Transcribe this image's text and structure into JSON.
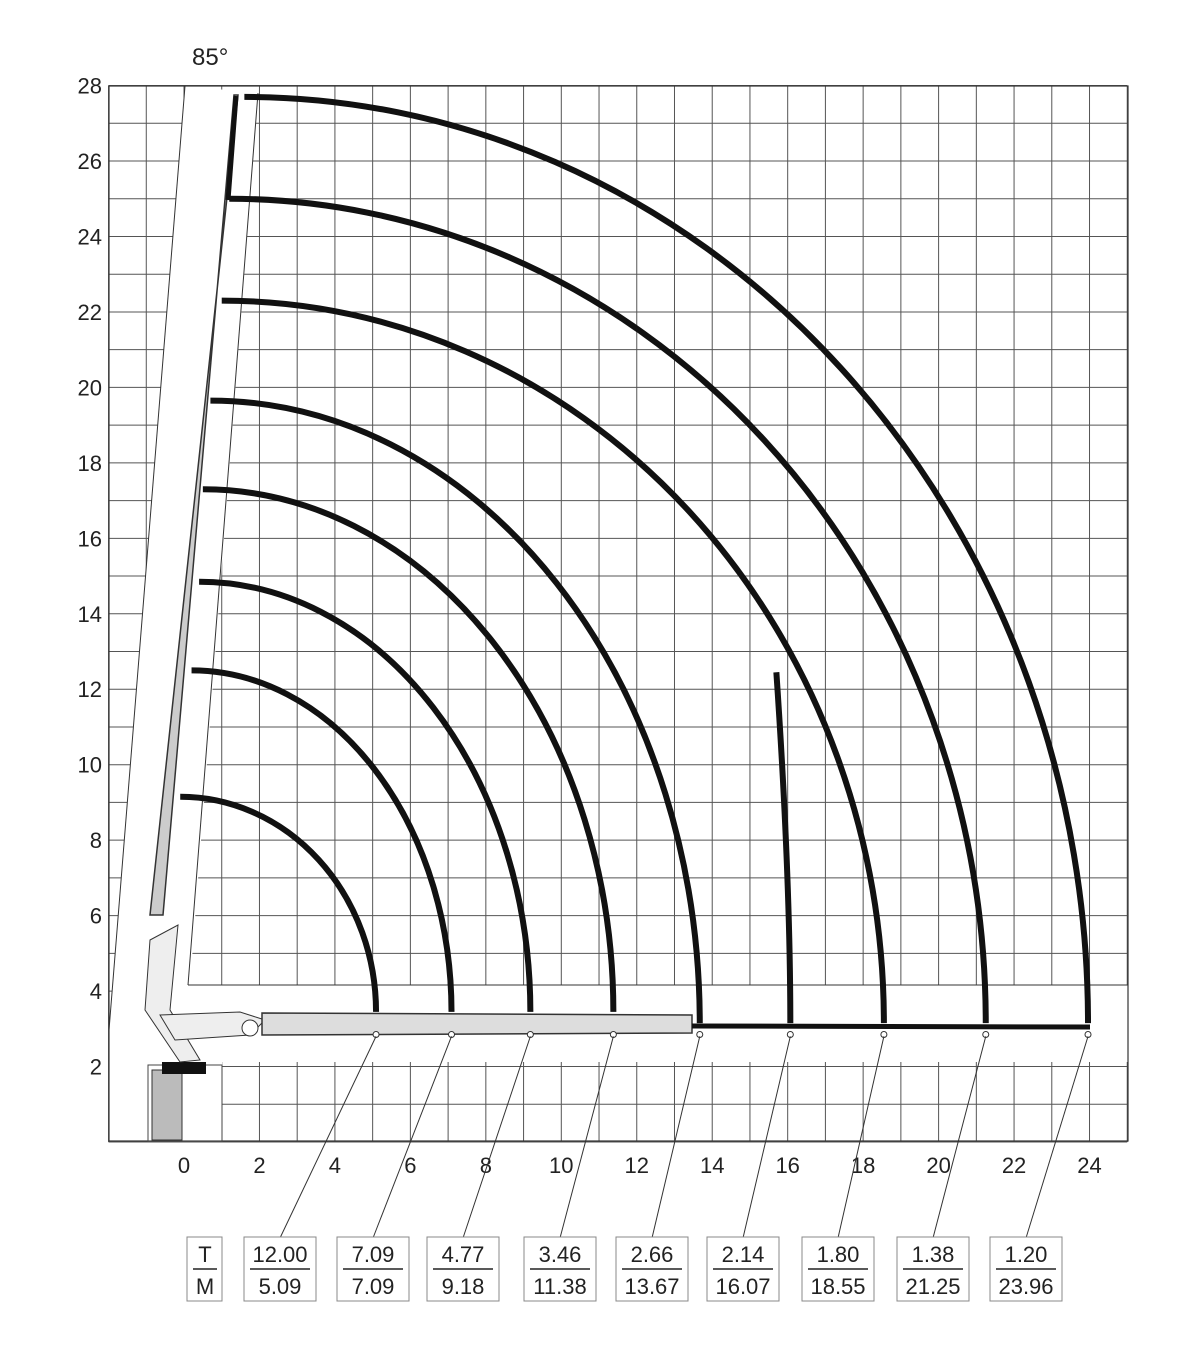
{
  "angle_label": "85°",
  "chart_data": {
    "type": "diagram",
    "xlim": [
      -2,
      25
    ],
    "ylim": [
      0,
      28
    ],
    "grid": true,
    "x_ticks": [
      "0",
      "2",
      "4",
      "6",
      "8",
      "10",
      "12",
      "14",
      "16",
      "18",
      "20",
      "22",
      "24"
    ],
    "y_ticks": [
      "2",
      "4",
      "6",
      "8",
      "10",
      "12",
      "14",
      "16",
      "18",
      "20",
      "22",
      "24",
      "26",
      "28"
    ],
    "table_header": {
      "top": "T",
      "bottom": "M"
    },
    "load_points": [
      {
        "load": "12.00",
        "reach": "5.09",
        "max_height": 9.15
      },
      {
        "load": "7.09",
        "reach": "7.09",
        "max_height": 12.5
      },
      {
        "load": "4.77",
        "reach": "9.18",
        "max_height": 14.85
      },
      {
        "load": "3.46",
        "reach": "11.38",
        "max_height": 17.3
      },
      {
        "load": "2.66",
        "reach": "13.67",
        "max_height": 19.65
      },
      {
        "load": "2.14",
        "reach": "16.07",
        "max_height": 12.45
      },
      {
        "load": "1.80",
        "reach": "18.55",
        "max_height": 22.3
      },
      {
        "load": "1.38",
        "reach": "21.25",
        "max_height": 25.0
      },
      {
        "load": "1.20",
        "reach": "23.96",
        "max_height": 27.7
      }
    ]
  }
}
